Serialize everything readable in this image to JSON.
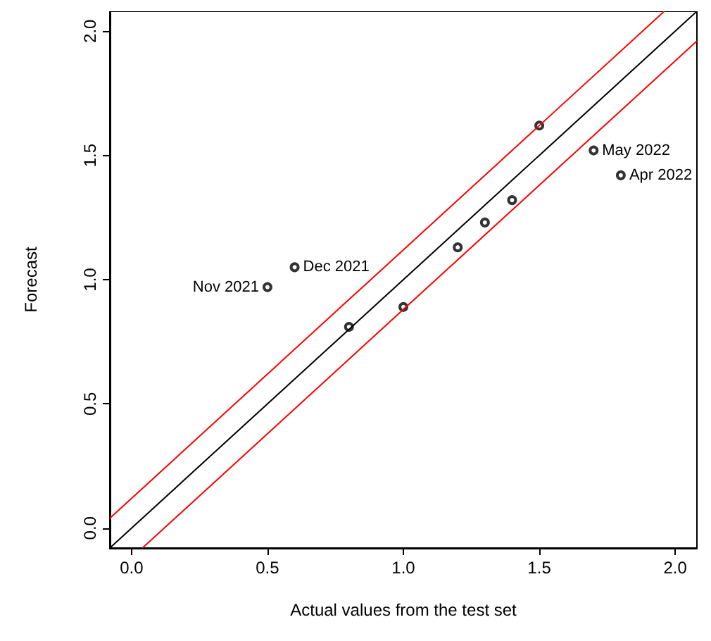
{
  "chart_data": {
    "type": "scatter",
    "xlabel": "Actual values from the test set",
    "ylabel": "Forecast",
    "xlim": [
      -0.08,
      2.08
    ],
    "ylim": [
      -0.08,
      2.08
    ],
    "xticks": [
      {
        "value": 0,
        "label": "0.0"
      },
      {
        "value": 0.5,
        "label": "0.5"
      },
      {
        "value": 1,
        "label": "1.0"
      },
      {
        "value": 1.5,
        "label": "1.5"
      },
      {
        "value": 2,
        "label": "2.0"
      }
    ],
    "yticks": [
      {
        "value": 0,
        "label": "0.0"
      },
      {
        "value": 0.5,
        "label": "0.5"
      },
      {
        "value": 1,
        "label": "1.0"
      },
      {
        "value": 1.5,
        "label": "1.5"
      },
      {
        "value": 2,
        "label": "2.0"
      }
    ],
    "grid": false,
    "series": [
      {
        "type": "line",
        "color": "#000000",
        "x": [
          -0.08,
          2.08
        ],
        "values": [
          -0.08,
          2.08
        ]
      },
      {
        "type": "line",
        "color": "#ff0000",
        "x": [
          -0.08,
          1.96
        ],
        "values": [
          0.04,
          2.08
        ]
      },
      {
        "type": "line",
        "color": "#ff0000",
        "x": [
          0.04,
          2.08
        ],
        "values": [
          -0.08,
          1.96
        ]
      },
      {
        "color": "#000000",
        "marker": "circle",
        "x": [
          0.5,
          0.6,
          0.8,
          1.0,
          1.2,
          1.3,
          1.4,
          1.5,
          1.7,
          1.8
        ],
        "values": [
          0.97,
          1.05,
          0.81,
          0.89,
          1.13,
          1.23,
          1.32,
          1.62,
          1.52,
          1.42
        ]
      }
    ],
    "annotations": [
      {
        "text": "Nov 2021",
        "x": 0.5,
        "y": 0.97
      },
      {
        "text": "Dec 2021",
        "x": 0.6,
        "y": 1.05
      },
      {
        "text": "May 2022",
        "x": 1.7,
        "y": 1.52
      },
      {
        "text": "Apr 2022",
        "x": 1.8,
        "y": 1.42
      }
    ]
  }
}
